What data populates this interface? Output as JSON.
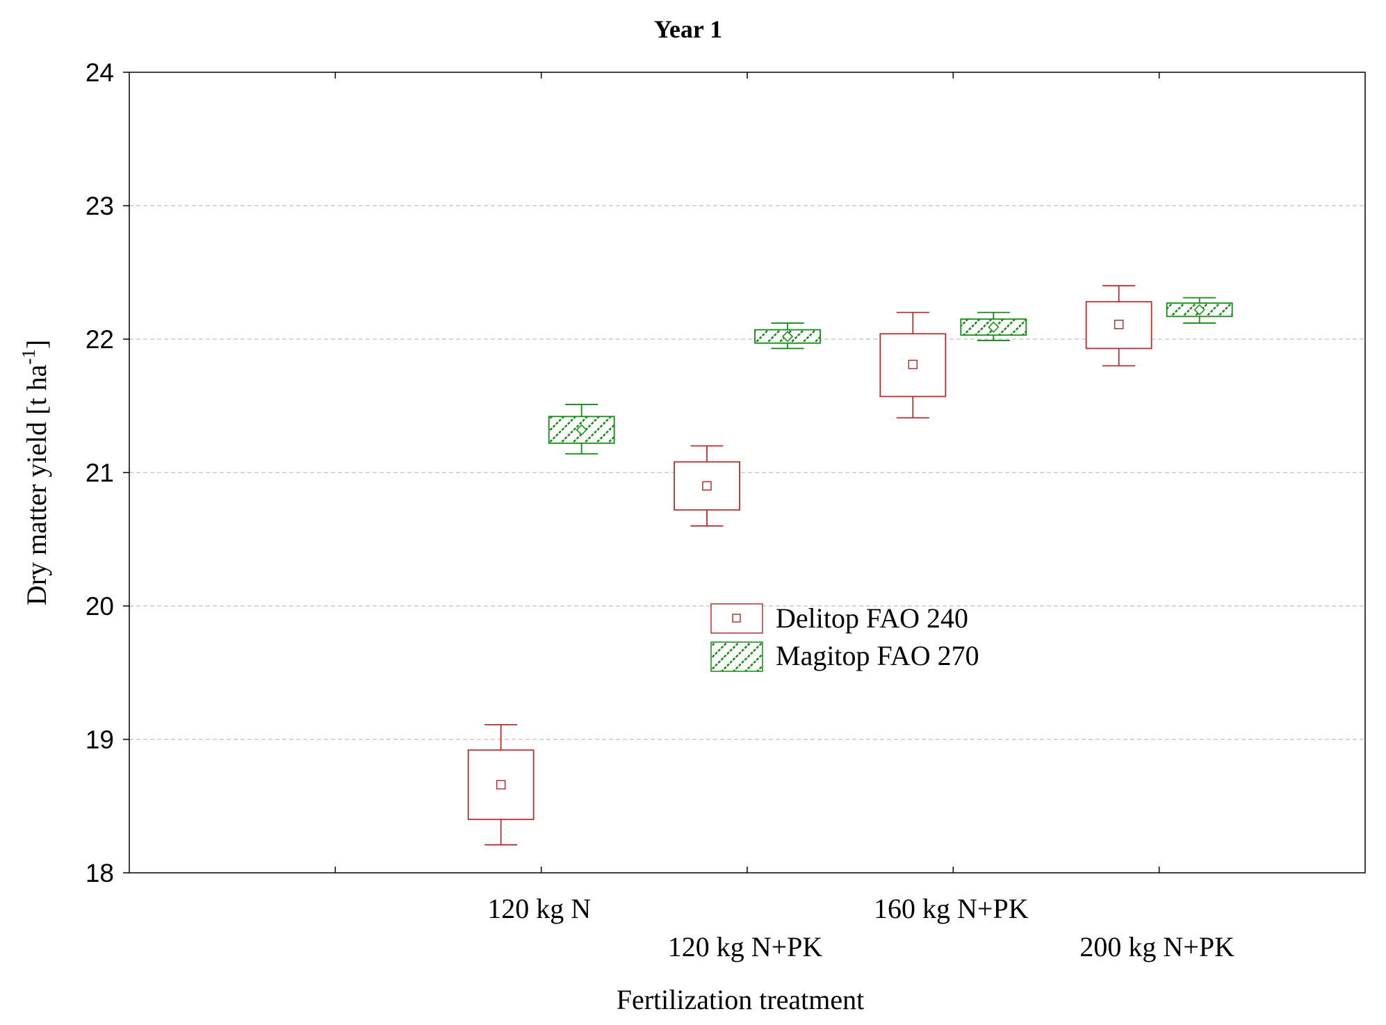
{
  "chart_data": {
    "type": "box",
    "title": "Year 1",
    "xlabel": "Fertilization treatment",
    "ylabel": "Dry matter yield [t ha",
    "ylabel_superscript": "-1",
    "ylabel_close": "]",
    "ylim": [
      18,
      24
    ],
    "yticks": [
      "18",
      "19",
      "20",
      "21",
      "22",
      "23",
      "24"
    ],
    "grid": "horizontal-dashed",
    "categories": [
      "120 kg N",
      "120 kg N+PK",
      "160 kg N+PK",
      "200 kg N+PK"
    ],
    "legend_position": "center",
    "series": [
      {
        "name": "Delitop FAO 240",
        "color": "#b03030",
        "pattern": "none",
        "mean": [
          18.66,
          20.9,
          21.81,
          22.11
        ],
        "box_low": [
          18.4,
          20.72,
          21.57,
          21.93
        ],
        "box_high": [
          18.92,
          21.08,
          22.04,
          22.28
        ],
        "whisker_low": [
          18.21,
          20.6,
          21.41,
          21.8
        ],
        "whisker_high": [
          19.11,
          21.2,
          22.2,
          22.4
        ]
      },
      {
        "name": "Magitop FAO 270",
        "color": "#138a13",
        "pattern": "diagonal-hatch",
        "mean": [
          21.32,
          22.02,
          22.09,
          22.22
        ],
        "box_low": [
          21.22,
          21.97,
          22.03,
          22.17
        ],
        "box_high": [
          21.42,
          22.07,
          22.15,
          22.27
        ],
        "whisker_low": [
          21.14,
          21.93,
          21.99,
          22.12
        ],
        "whisker_high": [
          21.51,
          22.12,
          22.2,
          22.31
        ]
      }
    ]
  }
}
